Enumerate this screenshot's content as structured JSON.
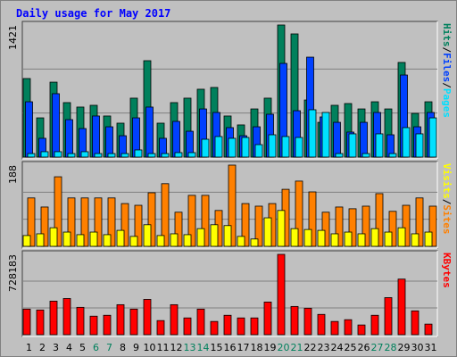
{
  "chart_data": [
    {
      "type": "bar",
      "title": "Daily usage for May 2017",
      "legend_separator": "/",
      "ylim": [
        0,
        1421
      ],
      "yticks": [
        1421
      ],
      "grid": true,
      "series": [
        {
          "name": "Hits",
          "color": "#00805c",
          "values": [
            845,
            422,
            806,
            586,
            538,
            557,
            442,
            365,
            634,
            1037,
            365,
            586,
            634,
            730,
            749,
            442,
            346,
            518,
            634,
            1421,
            1325,
            614,
            374,
            557,
            576,
            518,
            595,
            518,
            1018,
            470,
            595
          ]
        },
        {
          "name": "Files",
          "color": "#0040ff",
          "values": [
            595,
            202,
            682,
            403,
            307,
            442,
            326,
            230,
            422,
            538,
            202,
            384,
            278,
            518,
            480,
            317,
            230,
            326,
            461,
            1008,
            499,
            1075,
            432,
            374,
            269,
            374,
            480,
            240,
            883,
            326,
            480
          ]
        },
        {
          "name": "Pages",
          "color": "#00e0ff",
          "values": [
            38,
            58,
            58,
            38,
            58,
            38,
            38,
            38,
            77,
            38,
            38,
            48,
            48,
            192,
            221,
            202,
            211,
            134,
            240,
            221,
            211,
            509,
            480,
            38,
            250,
            38,
            250,
            38,
            317,
            250,
            422
          ]
        }
      ]
    },
    {
      "type": "bar",
      "legend_separator": "/",
      "front": "first",
      "ylim": [
        0,
        188
      ],
      "yticks": [
        188
      ],
      "grid": true,
      "series": [
        {
          "name": "Visits",
          "color": "#ffff00",
          "values": [
            25,
            29,
            43,
            33,
            27,
            33,
            27,
            37,
            23,
            50,
            25,
            29,
            27,
            41,
            50,
            48,
            23,
            17,
            66,
            83,
            41,
            39,
            37,
            29,
            33,
            29,
            41,
            33,
            43,
            29,
            33
          ]
        },
        {
          "name": "Sites",
          "color": "#ff8000",
          "values": [
            112,
            91,
            161,
            112,
            112,
            112,
            112,
            99,
            95,
            124,
            145,
            79,
            118,
            118,
            83,
            188,
            99,
            93,
            99,
            132,
            151,
            126,
            79,
            91,
            87,
            93,
            122,
            81,
            95,
            112,
            93
          ]
        }
      ]
    },
    {
      "type": "bar",
      "ylim": [
        0,
        728183
      ],
      "yticks": [
        728183
      ],
      "grid": true,
      "categories": [
        "1",
        "2",
        "3",
        "4",
        "5",
        "6",
        "7",
        "8",
        "9",
        "10",
        "11",
        "12",
        "13",
        "14",
        "15",
        "16",
        "17",
        "18",
        "19",
        "20",
        "21",
        "22",
        "23",
        "24",
        "25",
        "26",
        "27",
        "28",
        "29",
        "30",
        "31"
      ],
      "highlight": {
        "color": "#00805c",
        "indices": [
          5,
          6,
          12,
          13,
          19,
          20,
          26,
          27
        ]
      },
      "series": [
        {
          "name": "KBytes",
          "color": "#ff0000",
          "values": [
            232000,
            224000,
            304000,
            328000,
            248000,
            168000,
            176000,
            272000,
            232000,
            320000,
            128000,
            272000,
            152000,
            232000,
            120000,
            176000,
            152000,
            152000,
            296000,
            728183,
            256000,
            240000,
            184000,
            120000,
            136000,
            88000,
            176000,
            336000,
            504000,
            216000,
            96000
          ]
        }
      ]
    }
  ]
}
